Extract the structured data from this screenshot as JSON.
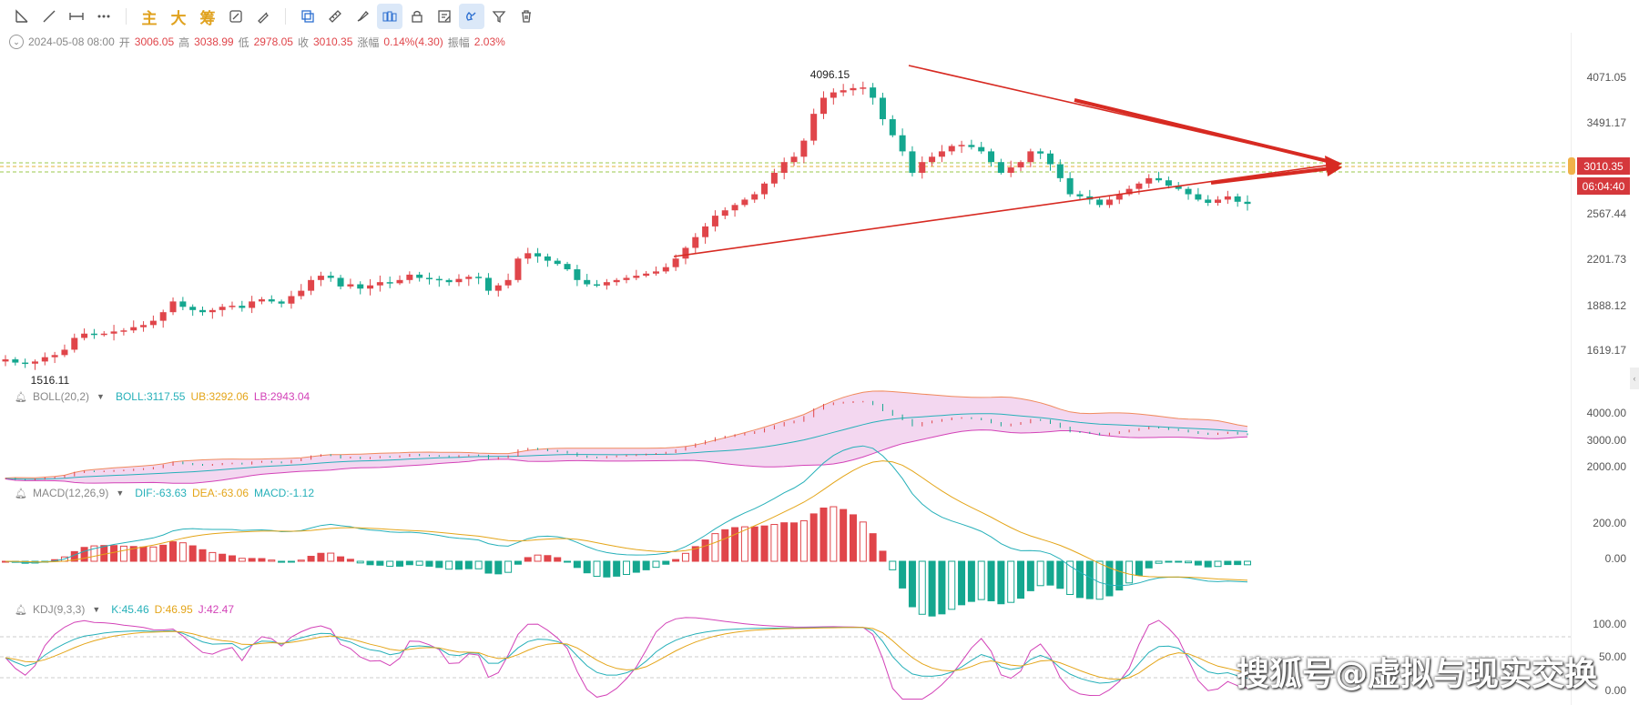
{
  "toolbar": {
    "left_tools": [
      {
        "name": "trendline-angle-icon"
      },
      {
        "name": "ray-line-icon"
      },
      {
        "name": "horizontal-line-icon"
      },
      {
        "name": "more-tools-icon"
      }
    ],
    "text_tools": [
      "主",
      "大",
      "筹"
    ],
    "right_tools": [
      {
        "name": "copy-icon",
        "active": false
      },
      {
        "name": "ruler-icon",
        "active": false
      },
      {
        "name": "brush-icon",
        "active": false
      },
      {
        "name": "candle-icon",
        "active": true
      },
      {
        "name": "lock-icon",
        "active": false
      },
      {
        "name": "note-icon",
        "active": false
      },
      {
        "name": "magnet-icon",
        "active": true
      },
      {
        "name": "filter-icon",
        "active": false
      },
      {
        "name": "trash-icon",
        "active": false
      }
    ]
  },
  "info": {
    "datetime": "2024-05-08 08:00",
    "open_label": "开",
    "open": "3006.05",
    "high_label": "高",
    "high": "3038.99",
    "low_label": "低",
    "low": "2978.05",
    "close_label": "收",
    "close": "3010.35",
    "change_label": "涨幅",
    "change": "0.14%(4.30)",
    "amp_label": "振幅",
    "amp": "2.03%"
  },
  "main_axis": [
    "4071.05",
    "3491.17",
    "2567.44",
    "2201.73",
    "1888.12",
    "1619.17"
  ],
  "price_tag": "3010.35",
  "time_tag": "06:04:40",
  "annotations": {
    "high": "4096.15",
    "low": "1516.11"
  },
  "boll": {
    "name": "BOLL(20,2)",
    "mid": "BOLL:3117.55",
    "ub": "UB:3292.06",
    "lb": "LB:2943.04",
    "axis": [
      "4000.00",
      "3000.00",
      "2000.00"
    ]
  },
  "macd": {
    "name": "MACD(12,26,9)",
    "dif": "DIF:-63.63",
    "dea": "DEA:-63.06",
    "macd": "MACD:-1.12",
    "axis": [
      "200.00",
      "0.00"
    ]
  },
  "kdj": {
    "name": "KDJ(9,3,3)",
    "k": "K:45.46",
    "d": "D:46.95",
    "j": "J:42.47",
    "axis": [
      "100.00",
      "50.00",
      "0.00"
    ]
  },
  "watermark": "搜狐号@虚拟与现实交换",
  "colors": {
    "up": "#e0454a",
    "down": "#14a78f",
    "boll_mid": "#26b0b9",
    "boll_ub": "#f08a5d",
    "boll_lb": "#d343b8",
    "triangle": "#d72a22",
    "accent": "#2c6fd1"
  },
  "chart_data": {
    "type": "candlestick",
    "price_range": [
      1450,
      4250
    ],
    "closes": [
      1560,
      1530,
      1520,
      1540,
      1580,
      1600,
      1650,
      1760,
      1800,
      1790,
      1800,
      1820,
      1830,
      1860,
      1880,
      1920,
      2000,
      2100,
      2050,
      2020,
      2000,
      2020,
      2050,
      2060,
      2040,
      2100,
      2120,
      2100,
      2080,
      2150,
      2200,
      2300,
      2340,
      2320,
      2240,
      2260,
      2220,
      2250,
      2280,
      2270,
      2300,
      2350,
      2320,
      2310,
      2300,
      2280,
      2310,
      2330,
      2320,
      2200,
      2250,
      2300,
      2500,
      2550,
      2520,
      2480,
      2450,
      2400,
      2300,
      2260,
      2250,
      2280,
      2300,
      2320,
      2340,
      2360,
      2380,
      2420,
      2500,
      2600,
      2700,
      2800,
      2900,
      2950,
      3000,
      3050,
      3100,
      3200,
      3300,
      3400,
      3450,
      3600,
      3850,
      4000,
      4050,
      4070,
      4090,
      4096,
      4000,
      3800,
      3650,
      3500,
      3300,
      3400,
      3450,
      3500,
      3550,
      3560,
      3540,
      3500,
      3400,
      3300,
      3350,
      3400,
      3500,
      3480,
      3380,
      3250,
      3100,
      3080,
      3050,
      3000,
      3050,
      3100,
      3150,
      3200,
      3250,
      3230,
      3180,
      3150,
      3100,
      3050,
      3020,
      3050,
      3080,
      3030,
      3010
    ],
    "boll": {
      "mid": "BOLL:3117.55",
      "ub": "UB:3292.06",
      "lb": "LB:2943.04"
    },
    "macd": {
      "dif": "DIF:-63.63",
      "dea": "DEA:-63.06",
      "macd": "MACD:-1.12"
    },
    "kdj": {
      "k": "K:45.46",
      "d": "D:46.95",
      "j": "J:42.47"
    }
  }
}
